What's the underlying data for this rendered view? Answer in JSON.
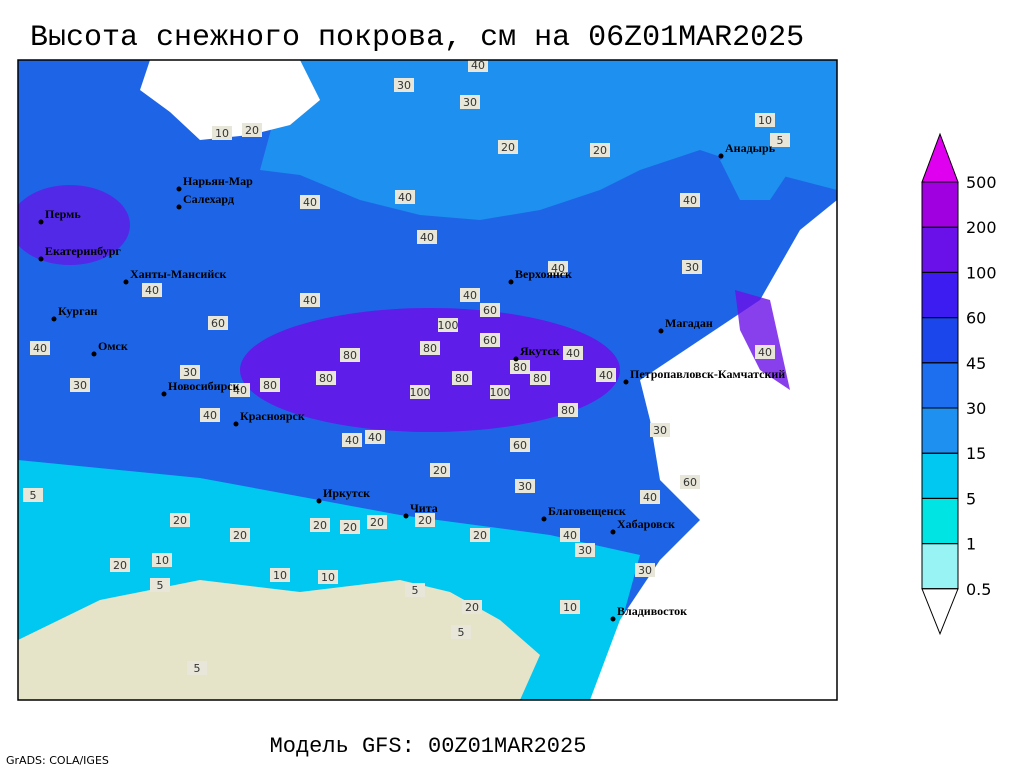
{
  "title": "Высота снежного покрова, см на 06Z01MAR2025",
  "subtitle": "Модель GFS: 00Z01MAR2025",
  "credit": "GrADS: COLA/IGES",
  "legend": {
    "levels": [
      0.5,
      1,
      5,
      15,
      30,
      45,
      60,
      100,
      200,
      500
    ],
    "colors": [
      "#ffffff",
      "#98f4f4",
      "#00e4e4",
      "#00c8f0",
      "#1e90f0",
      "#1e6ef0",
      "#1a46ec",
      "#3c1cf0",
      "#6a10e8",
      "#a000e0",
      "#e000f0"
    ]
  },
  "cities": [
    "Нарьян-Мар",
    "Салехард",
    "Пермь",
    "Екатеринбург",
    "Ханты-Мансийск",
    "Курган",
    "Омск",
    "Новосибирск",
    "Красноярск",
    "Иркутск",
    "Чита",
    "Благовещенск",
    "Хабаровск",
    "Владивосток",
    "Верхоянск",
    "Якутск",
    "Магадан",
    "Петропавловск-Камчатский",
    "Анадырь"
  ],
  "contour_labels": [
    30,
    40,
    30,
    20,
    20,
    20,
    10,
    100,
    80,
    80,
    80,
    100,
    100,
    80,
    80,
    80,
    80,
    80,
    60,
    60,
    60,
    40,
    40,
    40,
    60,
    40,
    30,
    30,
    40,
    40,
    40,
    40,
    30,
    40,
    30,
    60,
    40,
    30,
    40,
    30,
    30,
    5,
    20,
    20,
    10,
    5,
    20,
    10,
    5,
    5,
    10,
    5,
    40,
    40,
    40,
    40,
    40,
    40,
    40,
    20,
    20,
    20,
    20,
    20,
    20,
    20,
    5,
    10,
    10
  ]
}
